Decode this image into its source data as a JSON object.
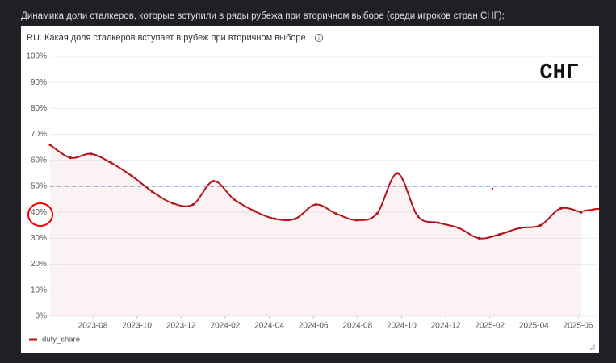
{
  "caption": "Динамика доли сталкеров, которые вступили в ряды рубежа при вторичном выборе (среди игроков стран СНГ):",
  "chart_data": {
    "type": "line",
    "title": "RU. Какая доля сталкеров вступает в рубеж при вторичном выборе",
    "annotation": "СНГ",
    "categories": [
      null,
      null,
      null,
      null,
      null,
      null,
      null,
      null,
      null,
      null,
      null,
      null,
      null,
      null,
      null,
      null,
      null,
      null,
      null,
      null,
      null,
      null,
      null,
      null,
      null,
      null,
      null
    ],
    "xtick_labels": [
      "2023-08",
      "2023-10",
      "2023-12",
      "2024-02",
      "2024-04",
      "2024-06",
      "2024-08",
      "2024-10",
      "2024-12",
      "2025-02",
      "2025-04",
      "2025-06"
    ],
    "series": [
      {
        "name": "duty_share",
        "color": "#b5121b",
        "values": [
          66,
          61,
          62.5,
          59,
          54,
          48,
          43.5,
          43,
          52,
          45,
          40.5,
          37.5,
          37.5,
          43,
          39.5,
          37,
          39.5,
          55,
          38.5,
          36,
          34,
          30,
          31.5,
          34,
          35,
          41.5,
          40
        ]
      }
    ],
    "reference_line": 50,
    "ylim": [
      0,
      100
    ],
    "yticks": [
      {
        "value": 0,
        "label": "0%"
      },
      {
        "value": 10,
        "label": "10%"
      },
      {
        "value": 20,
        "label": "20%"
      },
      {
        "value": 30,
        "label": "30%"
      },
      {
        "value": 40,
        "label": "40%"
      },
      {
        "value": 50,
        "label": "50%"
      },
      {
        "value": 60,
        "label": "60%"
      },
      {
        "value": 70,
        "label": "70%"
      },
      {
        "value": 80,
        "label": "80%"
      },
      {
        "value": 90,
        "label": "90%"
      },
      {
        "value": 100,
        "label": "100%"
      }
    ],
    "grid": true
  }
}
